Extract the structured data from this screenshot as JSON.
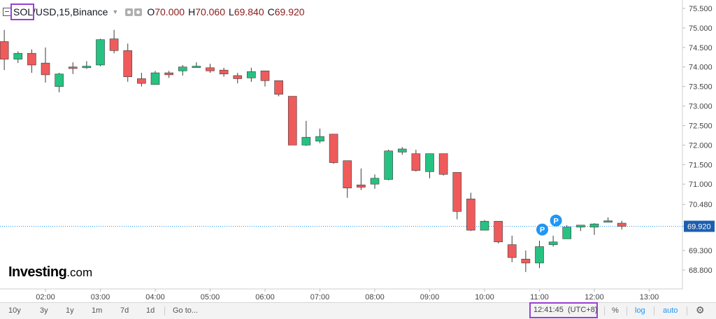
{
  "legend": {
    "symbol": "SOL/USD",
    "interval": "15",
    "exchange": "Binance",
    "open_label": "O",
    "open": "70.000",
    "high_label": "H",
    "high": "70.060",
    "low_label": "L",
    "low": "69.840",
    "close_label": "C",
    "close": "69.920"
  },
  "logo": {
    "brand": "Investing",
    "suffix": ".com"
  },
  "last_price_label": "69.920",
  "markers": [
    "P",
    "P"
  ],
  "toolbar": {
    "ranges": [
      "10y",
      "3y",
      "1y",
      "1m",
      "7d",
      "1d"
    ],
    "goto": "Go to...",
    "clock": "12:41:45",
    "timezone": "(UTC+8)",
    "percent": "%",
    "log": "log",
    "auto": "auto"
  },
  "colors": {
    "up": "#26c281",
    "down": "#ef5b5b",
    "outline": "#3a3a3a",
    "accent": "#2196f3",
    "highlight": "#9b3fd6"
  },
  "chart_data": {
    "type": "candlestick",
    "y_ticks": [
      "75.500",
      "75.000",
      "74.500",
      "74.000",
      "73.500",
      "73.000",
      "72.500",
      "72.000",
      "71.500",
      "71.000",
      "70.480",
      "69.920",
      "69.300",
      "68.800"
    ],
    "y_tick_values": [
      75.5,
      75.0,
      74.5,
      74.0,
      73.5,
      73.0,
      72.5,
      72.0,
      71.5,
      71.0,
      70.48,
      69.92,
      69.3,
      68.8
    ],
    "x_ticks": [
      "02:00",
      "03:00",
      "04:00",
      "05:00",
      "06:00",
      "07:00",
      "08:00",
      "09:00",
      "10:00",
      "11:00",
      "12:00",
      "13:00"
    ],
    "x_tick_hours": [
      2,
      3,
      4,
      5,
      6,
      7,
      8,
      9,
      10,
      11,
      12,
      13
    ],
    "last_price": 69.92,
    "candles": [
      {
        "t": 1.25,
        "o": 74.65,
        "h": 74.95,
        "l": 73.92,
        "c": 74.2
      },
      {
        "t": 1.5,
        "o": 74.2,
        "h": 74.4,
        "l": 74.1,
        "c": 74.35
      },
      {
        "t": 1.75,
        "o": 74.35,
        "h": 74.45,
        "l": 73.85,
        "c": 74.05
      },
      {
        "t": 2.0,
        "o": 74.1,
        "h": 74.5,
        "l": 73.6,
        "c": 73.8
      },
      {
        "t": 2.25,
        "o": 73.5,
        "h": 73.85,
        "l": 73.35,
        "c": 73.82
      },
      {
        "t": 2.5,
        "o": 74.0,
        "h": 74.12,
        "l": 73.82,
        "c": 73.96
      },
      {
        "t": 2.75,
        "o": 73.98,
        "h": 74.15,
        "l": 73.95,
        "c": 74.02
      },
      {
        "t": 3.0,
        "o": 74.05,
        "h": 74.72,
        "l": 74.02,
        "c": 74.7
      },
      {
        "t": 3.25,
        "o": 74.72,
        "h": 74.95,
        "l": 74.35,
        "c": 74.42
      },
      {
        "t": 3.5,
        "o": 74.42,
        "h": 74.6,
        "l": 73.62,
        "c": 73.75
      },
      {
        "t": 3.75,
        "o": 73.7,
        "h": 73.85,
        "l": 73.5,
        "c": 73.58
      },
      {
        "t": 4.0,
        "o": 73.55,
        "h": 73.9,
        "l": 73.55,
        "c": 73.85
      },
      {
        "t": 4.25,
        "o": 73.85,
        "h": 73.9,
        "l": 73.72,
        "c": 73.8
      },
      {
        "t": 4.5,
        "o": 73.9,
        "h": 74.05,
        "l": 73.78,
        "c": 74.0
      },
      {
        "t": 4.75,
        "o": 74.02,
        "h": 74.12,
        "l": 73.98,
        "c": 74.02
      },
      {
        "t": 5.0,
        "o": 73.98,
        "h": 74.08,
        "l": 73.85,
        "c": 73.9
      },
      {
        "t": 5.25,
        "o": 73.92,
        "h": 73.98,
        "l": 73.75,
        "c": 73.82
      },
      {
        "t": 5.5,
        "o": 73.78,
        "h": 73.85,
        "l": 73.58,
        "c": 73.7
      },
      {
        "t": 5.75,
        "o": 73.72,
        "h": 73.98,
        "l": 73.62,
        "c": 73.88
      },
      {
        "t": 6.0,
        "o": 73.9,
        "h": 73.9,
        "l": 73.5,
        "c": 73.65
      },
      {
        "t": 6.25,
        "o": 73.65,
        "h": 73.65,
        "l": 73.25,
        "c": 73.3
      },
      {
        "t": 6.5,
        "o": 73.25,
        "h": 73.25,
        "l": 72.0,
        "c": 72.0
      },
      {
        "t": 6.75,
        "o": 72.0,
        "h": 72.62,
        "l": 71.98,
        "c": 72.2
      },
      {
        "t": 7.0,
        "o": 72.1,
        "h": 72.42,
        "l": 72.05,
        "c": 72.22
      },
      {
        "t": 7.25,
        "o": 72.28,
        "h": 72.28,
        "l": 71.52,
        "c": 71.55
      },
      {
        "t": 7.5,
        "o": 71.6,
        "h": 71.6,
        "l": 70.65,
        "c": 70.9
      },
      {
        "t": 7.75,
        "o": 70.98,
        "h": 71.4,
        "l": 70.85,
        "c": 70.92
      },
      {
        "t": 8.0,
        "o": 71.0,
        "h": 71.25,
        "l": 70.88,
        "c": 71.15
      },
      {
        "t": 8.25,
        "o": 71.12,
        "h": 71.88,
        "l": 71.1,
        "c": 71.85
      },
      {
        "t": 8.5,
        "o": 71.82,
        "h": 71.95,
        "l": 71.75,
        "c": 71.9
      },
      {
        "t": 8.75,
        "o": 71.78,
        "h": 71.88,
        "l": 71.32,
        "c": 71.35
      },
      {
        "t": 9.0,
        "o": 71.32,
        "h": 71.78,
        "l": 71.15,
        "c": 71.78
      },
      {
        "t": 9.25,
        "o": 71.78,
        "h": 71.78,
        "l": 71.22,
        "c": 71.25
      },
      {
        "t": 9.5,
        "o": 71.3,
        "h": 71.3,
        "l": 70.1,
        "c": 70.3
      },
      {
        "t": 9.75,
        "o": 70.62,
        "h": 70.78,
        "l": 69.8,
        "c": 69.82
      },
      {
        "t": 10.0,
        "o": 69.82,
        "h": 70.08,
        "l": 69.82,
        "c": 70.05
      },
      {
        "t": 10.25,
        "o": 70.05,
        "h": 70.05,
        "l": 69.48,
        "c": 69.52
      },
      {
        "t": 10.5,
        "o": 69.45,
        "h": 69.68,
        "l": 69.0,
        "c": 69.12
      },
      {
        "t": 10.75,
        "o": 69.08,
        "h": 69.3,
        "l": 68.75,
        "c": 68.98
      },
      {
        "t": 11.0,
        "o": 68.98,
        "h": 69.55,
        "l": 68.85,
        "c": 69.4
      },
      {
        "t": 11.25,
        "o": 69.45,
        "h": 69.68,
        "l": 69.4,
        "c": 69.52
      },
      {
        "t": 11.5,
        "o": 69.6,
        "h": 69.95,
        "l": 69.6,
        "c": 69.9
      },
      {
        "t": 11.75,
        "o": 69.9,
        "h": 69.95,
        "l": 69.8,
        "c": 69.95
      },
      {
        "t": 12.0,
        "o": 69.9,
        "h": 70.0,
        "l": 69.7,
        "c": 69.98
      },
      {
        "t": 12.25,
        "o": 70.05,
        "h": 70.15,
        "l": 70.02,
        "c": 70.06
      },
      {
        "t": 12.5,
        "o": 70.0,
        "h": 70.06,
        "l": 69.84,
        "c": 69.92
      }
    ],
    "marker_points": [
      {
        "t": 11.0,
        "value": 69.55
      },
      {
        "t": 11.25,
        "value": 69.78
      }
    ]
  }
}
